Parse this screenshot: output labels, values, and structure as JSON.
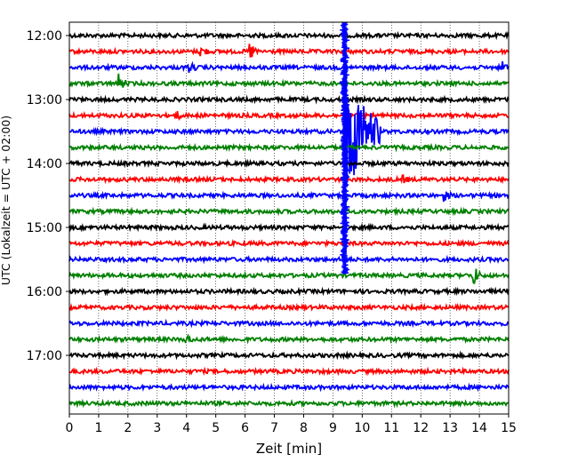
{
  "chart_data": {
    "type": "line",
    "title": "",
    "xlabel": "Zeit  [min]",
    "ylabel": "UTC (Lokalzeit = UTC + 02:00)",
    "xlim": [
      0,
      15
    ],
    "x_ticks": [
      "0",
      "1",
      "2",
      "3",
      "4",
      "5",
      "6",
      "7",
      "8",
      "9",
      "10",
      "11",
      "12",
      "13",
      "14",
      "15"
    ],
    "y_ticks": [
      "12:00",
      "13:00",
      "14:00",
      "15:00",
      "16:00",
      "17:00"
    ],
    "grid": "vertical dotted lines at each minute",
    "legend": "none",
    "row_interval_min": 15,
    "rows": [
      {
        "start": "12:00",
        "color": "#000000"
      },
      {
        "start": "12:15",
        "color": "#ff0000"
      },
      {
        "start": "12:30",
        "color": "#0000ff"
      },
      {
        "start": "12:45",
        "color": "#008000"
      },
      {
        "start": "13:00",
        "color": "#000000"
      },
      {
        "start": "13:15",
        "color": "#ff0000"
      },
      {
        "start": "13:30",
        "color": "#0000ff"
      },
      {
        "start": "13:45",
        "color": "#008000"
      },
      {
        "start": "14:00",
        "color": "#000000"
      },
      {
        "start": "14:15",
        "color": "#ff0000"
      },
      {
        "start": "14:30",
        "color": "#0000ff"
      },
      {
        "start": "14:45",
        "color": "#008000"
      },
      {
        "start": "15:00",
        "color": "#000000"
      },
      {
        "start": "15:15",
        "color": "#ff0000"
      },
      {
        "start": "15:30",
        "color": "#0000ff"
      },
      {
        "start": "15:45",
        "color": "#008000"
      },
      {
        "start": "16:00",
        "color": "#000000"
      },
      {
        "start": "16:15",
        "color": "#ff0000"
      },
      {
        "start": "16:30",
        "color": "#0000ff"
      },
      {
        "start": "16:45",
        "color": "#008000"
      },
      {
        "start": "17:00",
        "color": "#000000"
      },
      {
        "start": "17:15",
        "color": "#ff0000"
      },
      {
        "start": "17:30",
        "color": "#0000ff"
      },
      {
        "start": "17:45",
        "color": "#008000"
      }
    ],
    "events": [
      {
        "row": 1,
        "t": 4.5,
        "amp": 0.35
      },
      {
        "row": 1,
        "t": 6.2,
        "amp": 0.45
      },
      {
        "row": 2,
        "t": 4.1,
        "amp": 0.25
      },
      {
        "row": 2,
        "t": 14.8,
        "amp": 0.3
      },
      {
        "row": 3,
        "t": 1.7,
        "amp": 0.5
      },
      {
        "row": 5,
        "t": 3.7,
        "amp": 0.15
      },
      {
        "row": 6,
        "t": 9.45,
        "amp": 4.0,
        "dur": 1.2
      },
      {
        "row": 9,
        "t": 11.4,
        "amp": 0.15
      },
      {
        "row": 10,
        "t": 12.8,
        "amp": 0.25
      },
      {
        "row": 15,
        "t": 13.8,
        "amp": 0.6
      },
      {
        "row": 19,
        "t": 4.0,
        "amp": 0.2
      }
    ],
    "quake_trace": {
      "t": 9.4,
      "from_row": 0,
      "to_row": 15,
      "color": "#0000ff"
    }
  }
}
